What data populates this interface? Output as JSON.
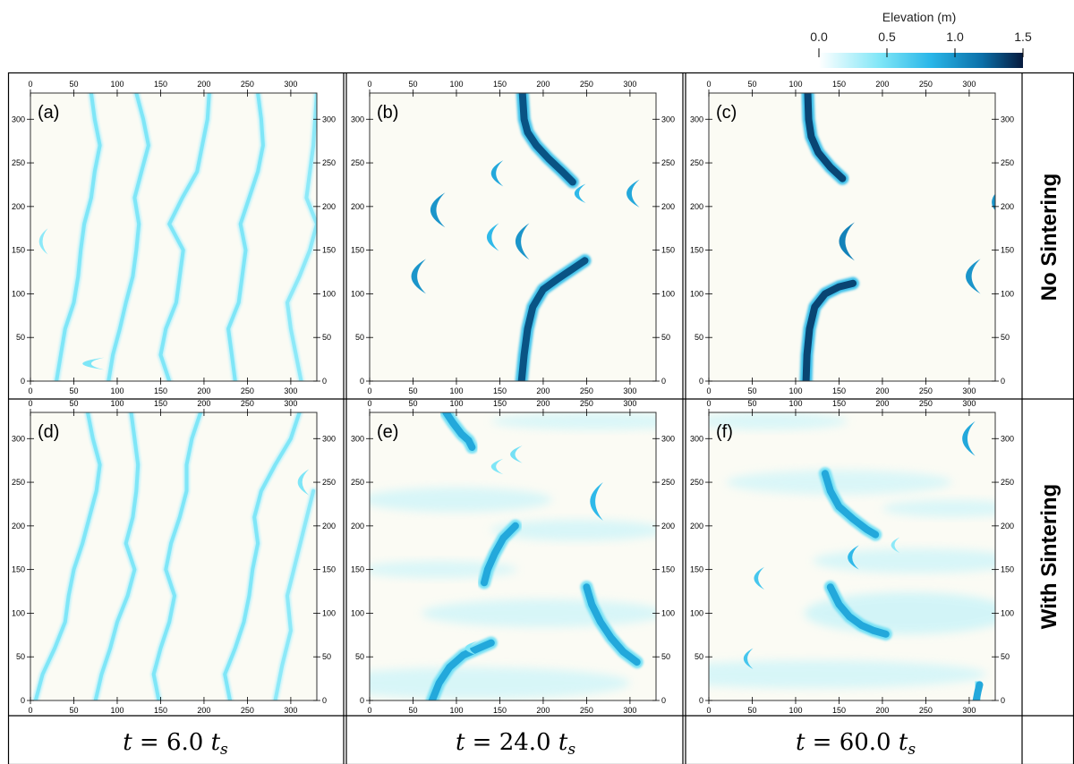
{
  "colorbar": {
    "title": "Elevation (m)",
    "ticks": [
      "0.0",
      "0.5",
      "1.0",
      "1.5"
    ],
    "range": [
      0,
      1.5
    ],
    "colors": [
      "#ffffff",
      "#7fe6f7",
      "#29b6e8",
      "#0b6fa8",
      "#061a3d"
    ]
  },
  "row_labels": [
    "No Sintering",
    "With Sintering"
  ],
  "time_labels": [
    {
      "t": "t",
      "eq": " = 6.0 ",
      "ts": "t",
      "sub": "s"
    },
    {
      "t": "t",
      "eq": " = 24.0 ",
      "ts": "t",
      "sub": "s"
    },
    {
      "t": "t",
      "eq": " = 60.0 ",
      "ts": "t",
      "sub": "s"
    }
  ],
  "axis_ticks": [
    "0",
    "50",
    "100",
    "150",
    "200",
    "250",
    "300"
  ],
  "chart_data": [
    {
      "type": "heatmap",
      "label": "(a)",
      "xlim": [
        0,
        330
      ],
      "ylim": [
        0,
        330
      ],
      "ridges": [
        {
          "x": [
            30,
            35,
            40,
            50,
            55,
            58,
            62,
            70,
            74,
            80,
            74,
            70
          ],
          "y": [
            0,
            30,
            60,
            90,
            120,
            150,
            180,
            210,
            240,
            270,
            300,
            330
          ],
          "v": 0.45
        },
        {
          "x": [
            90,
            95,
            103,
            110,
            118,
            122,
            125,
            120,
            128,
            136,
            130,
            122
          ],
          "y": [
            0,
            30,
            60,
            90,
            120,
            150,
            180,
            210,
            240,
            270,
            300,
            330
          ],
          "v": 0.45
        },
        {
          "x": [
            160,
            150,
            156,
            168,
            172,
            176,
            160,
            175,
            192,
            198,
            204,
            206
          ],
          "y": [
            0,
            30,
            60,
            90,
            120,
            150,
            180,
            210,
            240,
            270,
            300,
            330
          ],
          "v": 0.45
        },
        {
          "x": [
            236,
            232,
            228,
            240,
            244,
            248,
            242,
            252,
            262,
            268,
            266,
            262
          ],
          "y": [
            0,
            30,
            60,
            90,
            120,
            150,
            180,
            210,
            240,
            270,
            300,
            330
          ],
          "v": 0.45
        },
        {
          "x": [
            312,
            306,
            300,
            296,
            310,
            322,
            330,
            318,
            326,
            330
          ],
          "y": [
            0,
            30,
            60,
            90,
            120,
            150,
            180,
            210,
            270,
            330
          ],
          "v": 0.4
        }
      ],
      "crescents": [
        {
          "x": 60,
          "y": 20,
          "v": 0.45,
          "w": 50,
          "h": 14,
          "d": "r"
        },
        {
          "x": 10,
          "y": 160,
          "v": 0.4,
          "w": 20,
          "h": 30,
          "d": "r"
        }
      ]
    },
    {
      "type": "heatmap",
      "label": "(b)",
      "xlim": [
        0,
        330
      ],
      "ylim": [
        0,
        330
      ],
      "ridges": [
        {
          "x": [
            175,
            178,
            182,
            188,
            200,
            218,
            236,
            248
          ],
          "y": [
            0,
            30,
            60,
            85,
            105,
            118,
            130,
            138
          ],
          "v": 1.3
        },
        {
          "x": [
            176,
            178,
            182,
            192,
            206,
            222,
            234
          ],
          "y": [
            330,
            300,
            285,
            270,
            255,
            240,
            228
          ],
          "v": 1.3
        }
      ],
      "crescents": [
        {
          "x": 48,
          "y": 120,
          "v": 1.0,
          "w": 34,
          "h": 40,
          "d": "r"
        },
        {
          "x": 70,
          "y": 196,
          "v": 1.0,
          "w": 34,
          "h": 40,
          "d": "r"
        },
        {
          "x": 168,
          "y": 160,
          "v": 1.0,
          "w": 32,
          "h": 42,
          "d": "r"
        },
        {
          "x": 140,
          "y": 238,
          "v": 0.9,
          "w": 28,
          "h": 30,
          "d": "r"
        },
        {
          "x": 135,
          "y": 165,
          "v": 0.8,
          "w": 28,
          "h": 32,
          "d": "r"
        },
        {
          "x": 236,
          "y": 215,
          "v": 0.8,
          "w": 26,
          "h": 22,
          "d": "r"
        },
        {
          "x": 296,
          "y": 215,
          "v": 0.9,
          "w": 30,
          "h": 32,
          "d": "r"
        }
      ]
    },
    {
      "type": "heatmap",
      "label": "(c)",
      "xlim": [
        0,
        330
      ],
      "ylim": [
        0,
        330
      ],
      "ridges": [
        {
          "x": [
            112,
            113,
            116,
            122,
            134,
            150,
            166
          ],
          "y": [
            0,
            30,
            60,
            85,
            100,
            108,
            112
          ],
          "v": 1.35
        },
        {
          "x": [
            114,
            115,
            118,
            126,
            140,
            154
          ],
          "y": [
            330,
            300,
            280,
            262,
            245,
            232
          ],
          "v": 1.35
        }
      ],
      "crescents": [
        {
          "x": 150,
          "y": 160,
          "v": 1.1,
          "w": 36,
          "h": 44,
          "d": "r"
        },
        {
          "x": 296,
          "y": 120,
          "v": 1.0,
          "w": 34,
          "h": 40,
          "d": "r"
        },
        {
          "x": 326,
          "y": 205,
          "v": 1.0,
          "w": 34,
          "h": 40,
          "d": "r"
        }
      ]
    },
    {
      "type": "heatmap",
      "label": "(d)",
      "xlim": [
        0,
        330
      ],
      "ylim": [
        0,
        330
      ],
      "ridges": [
        {
          "x": [
            6,
            14,
            28,
            40,
            44,
            50,
            60,
            68,
            76,
            80,
            72,
            66
          ],
          "y": [
            0,
            30,
            60,
            90,
            120,
            150,
            180,
            210,
            240,
            270,
            300,
            330
          ],
          "v": 0.45
        },
        {
          "x": [
            75,
            82,
            92,
            100,
            112,
            120,
            110,
            118,
            122,
            124,
            120,
            116
          ],
          "y": [
            0,
            30,
            60,
            90,
            120,
            150,
            180,
            210,
            240,
            270,
            300,
            330
          ],
          "v": 0.45
        },
        {
          "x": [
            148,
            142,
            150,
            160,
            166,
            156,
            162,
            172,
            180,
            180,
            186,
            196
          ],
          "y": [
            0,
            30,
            60,
            90,
            120,
            150,
            180,
            210,
            240,
            270,
            300,
            330
          ],
          "v": 0.45
        },
        {
          "x": [
            230,
            224,
            236,
            246,
            252,
            256,
            262,
            258,
            266,
            282,
            300,
            310
          ],
          "y": [
            0,
            30,
            60,
            90,
            120,
            150,
            180,
            210,
            240,
            270,
            300,
            330
          ],
          "v": 0.45
        },
        {
          "x": [
            282,
            290,
            300,
            296,
            306,
            316,
            326
          ],
          "y": [
            0,
            40,
            80,
            120,
            160,
            200,
            240
          ],
          "v": 0.4
        }
      ],
      "crescents": [
        {
          "x": 308,
          "y": 250,
          "v": 0.45,
          "w": 26,
          "h": 30,
          "d": "r"
        },
        {
          "x": 338,
          "y": 220,
          "v": 0.4,
          "w": 26,
          "h": 30,
          "d": "r"
        }
      ]
    },
    {
      "type": "heatmap",
      "label": "(e)",
      "xlim": [
        0,
        330
      ],
      "ylim": [
        0,
        330
      ],
      "ridges": [
        {
          "x": [
            72,
            80,
            92,
            108,
            126,
            140
          ],
          "y": [
            0,
            20,
            38,
            52,
            60,
            66
          ],
          "v": 0.9
        },
        {
          "x": [
            132,
            136,
            144,
            154,
            168
          ],
          "y": [
            135,
            150,
            168,
            186,
            200
          ],
          "v": 0.9
        },
        {
          "x": [
            250,
            256,
            266,
            278,
            292,
            308
          ],
          "y": [
            130,
            110,
            90,
            72,
            56,
            44
          ],
          "v": 0.9
        },
        {
          "x": [
            88,
            96,
            106,
            114,
            118
          ],
          "y": [
            330,
            318,
            305,
            298,
            290
          ],
          "v": 0.9
        }
      ],
      "crescents": [
        {
          "x": 254,
          "y": 228,
          "v": 0.8,
          "w": 30,
          "h": 44,
          "d": "r"
        },
        {
          "x": 162,
          "y": 282,
          "v": 0.5,
          "w": 28,
          "h": 20,
          "d": "r"
        },
        {
          "x": 140,
          "y": 268,
          "v": 0.45,
          "w": 28,
          "h": 18,
          "d": "r"
        },
        {
          "x": 110,
          "y": 60,
          "v": 0.45,
          "w": 28,
          "h": 16,
          "d": "r"
        }
      ],
      "haze": [
        {
          "x": 100,
          "y": 230,
          "rx": 110,
          "ry": 14,
          "v": 0.12
        },
        {
          "x": 240,
          "y": 195,
          "rx": 100,
          "ry": 12,
          "v": 0.12
        },
        {
          "x": 80,
          "y": 150,
          "rx": 90,
          "ry": 10,
          "v": 0.1
        },
        {
          "x": 200,
          "y": 100,
          "rx": 140,
          "ry": 16,
          "v": 0.12
        },
        {
          "x": 120,
          "y": 20,
          "rx": 180,
          "ry": 18,
          "v": 0.12
        },
        {
          "x": 260,
          "y": 320,
          "rx": 120,
          "ry": 10,
          "v": 0.1
        }
      ]
    },
    {
      "type": "heatmap",
      "label": "(f)",
      "xlim": [
        0,
        330
      ],
      "ylim": [
        0,
        330
      ],
      "ridges": [
        {
          "x": [
            140,
            150,
            162,
            176,
            190,
            204
          ],
          "y": [
            130,
            110,
            96,
            86,
            80,
            76
          ],
          "v": 0.9
        },
        {
          "x": [
            134,
            140,
            150,
            166,
            182,
            192
          ],
          "y": [
            260,
            240,
            222,
            208,
            196,
            190
          ],
          "v": 0.9
        },
        {
          "x": [
            308,
            310,
            312
          ],
          "y": [
            0,
            10,
            18
          ],
          "v": 0.9
        }
      ],
      "crescents": [
        {
          "x": 292,
          "y": 300,
          "v": 0.9,
          "w": 30,
          "h": 40,
          "d": "r"
        },
        {
          "x": 160,
          "y": 164,
          "v": 0.8,
          "w": 26,
          "h": 28,
          "d": "r"
        },
        {
          "x": 52,
          "y": 140,
          "v": 0.7,
          "w": 24,
          "h": 26,
          "d": "r"
        },
        {
          "x": 40,
          "y": 48,
          "v": 0.7,
          "w": 22,
          "h": 24,
          "d": "r"
        },
        {
          "x": 210,
          "y": 178,
          "v": 0.4,
          "w": 20,
          "h": 18,
          "d": "r"
        }
      ],
      "haze": [
        {
          "x": 150,
          "y": 250,
          "rx": 130,
          "ry": 14,
          "v": 0.1
        },
        {
          "x": 240,
          "y": 160,
          "rx": 120,
          "ry": 14,
          "v": 0.12
        },
        {
          "x": 230,
          "y": 100,
          "rx": 120,
          "ry": 24,
          "v": 0.15
        },
        {
          "x": 120,
          "y": 30,
          "rx": 200,
          "ry": 16,
          "v": 0.12
        },
        {
          "x": 70,
          "y": 320,
          "rx": 90,
          "ry": 10,
          "v": 0.1
        },
        {
          "x": 280,
          "y": 220,
          "rx": 80,
          "ry": 10,
          "v": 0.1
        }
      ]
    }
  ]
}
